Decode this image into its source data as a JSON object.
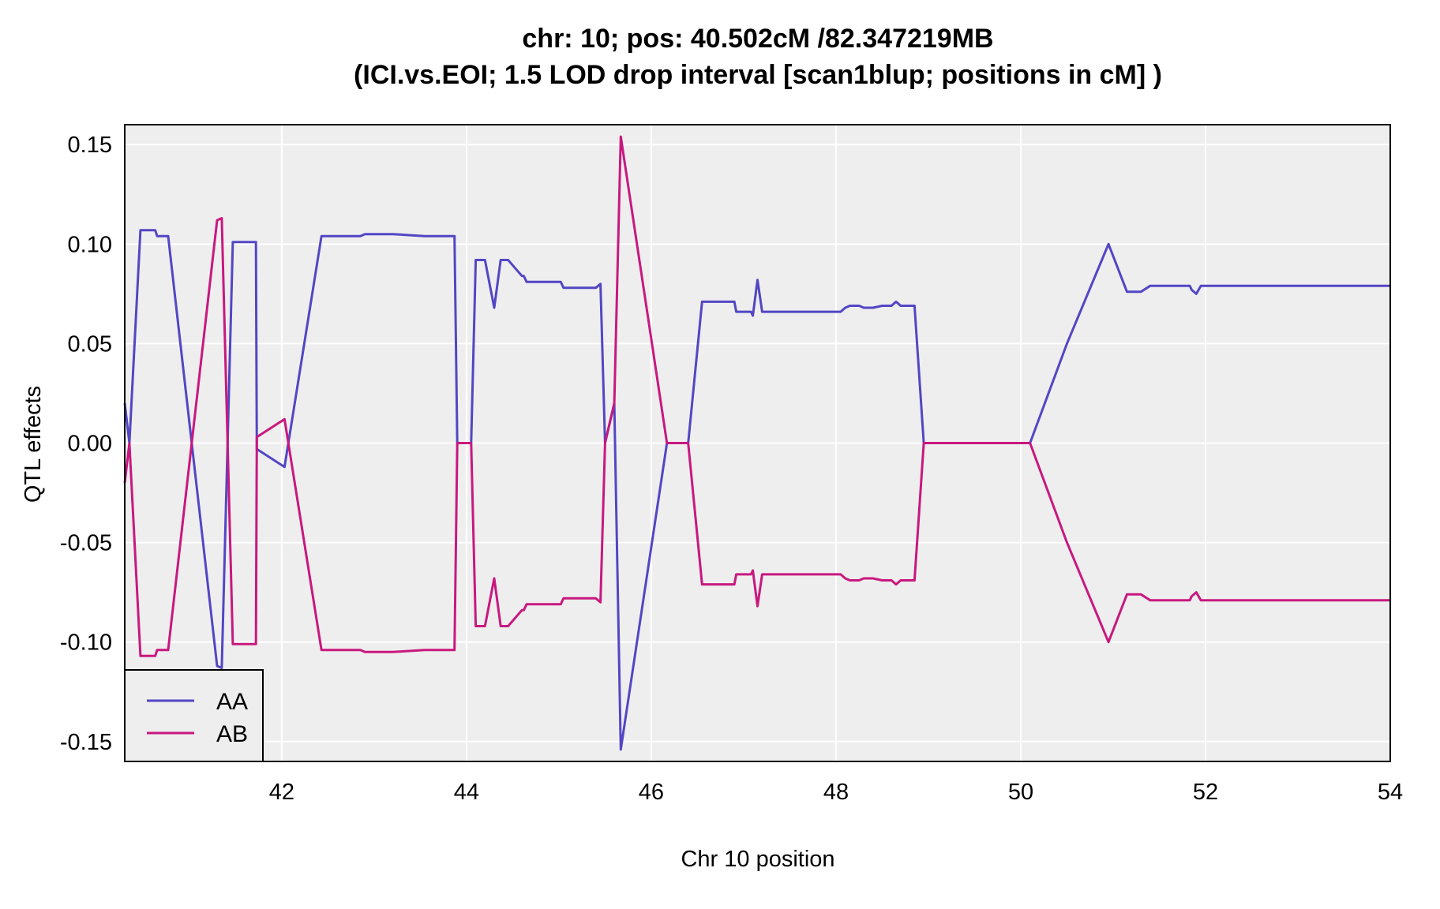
{
  "chart_data": {
    "type": "line",
    "title": "chr: 10; pos: 40.502cM /82.347219MB",
    "subtitle": "(ICI.vs.EOI; 1.5 LOD drop interval [scan1blup; positions in cM] )",
    "xlabel": "Chr 10 position",
    "ylabel": "QTL effects",
    "xlim": [
      40.3,
      54.0
    ],
    "ylim": [
      -0.16,
      0.16
    ],
    "xticks": [
      42,
      44,
      46,
      48,
      50,
      52,
      54
    ],
    "xtick_labels": [
      "42",
      "44",
      "46",
      "48",
      "50",
      "52",
      "54"
    ],
    "yticks": [
      -0.15,
      -0.1,
      -0.05,
      0.0,
      0.05,
      0.1,
      0.15
    ],
    "ytick_labels": [
      "-0.15",
      "-0.10",
      "-0.05",
      "0.00",
      "0.05",
      "0.10",
      "0.15"
    ],
    "grid": true,
    "background": "#eeeeee",
    "legend_position": "bottom-left",
    "series": [
      {
        "name": "AA",
        "color": "#5346c4",
        "x": [
          40.3,
          40.35,
          40.47,
          40.63,
          40.65,
          40.77,
          41.3,
          41.35,
          41.47,
          41.72,
          41.73,
          42.03,
          42.43,
          42.55,
          42.6,
          42.7,
          42.85,
          42.9,
          42.95,
          43.2,
          43.55,
          43.62,
          43.7,
          43.87,
          43.9,
          44.05,
          44.1,
          44.12,
          44.2,
          44.3,
          44.37,
          44.45,
          44.6,
          44.62,
          44.65,
          44.8,
          44.95,
          45.02,
          45.05,
          45.1,
          45.2,
          45.4,
          45.45,
          45.5,
          45.6,
          45.67,
          46.17,
          46.4,
          46.55,
          46.75,
          46.9,
          46.92,
          47.08,
          47.1,
          47.15,
          47.2,
          47.3,
          47.4,
          47.5,
          47.6,
          47.7,
          47.8,
          47.9,
          48.0,
          48.05,
          48.1,
          48.15,
          48.25,
          48.3,
          48.35,
          48.4,
          48.5,
          48.55,
          48.6,
          48.65,
          48.7,
          48.75,
          48.8,
          48.85,
          48.95,
          49.2,
          49.5,
          49.8,
          50.1,
          50.5,
          50.95,
          51.15,
          51.22,
          51.3,
          51.4,
          51.5,
          51.6,
          51.75,
          51.83,
          51.85,
          51.9,
          51.95,
          52.1,
          52.5,
          52.9,
          53.2,
          53.5,
          53.98,
          54.0
        ],
        "y": [
          0.02,
          0.0,
          0.107,
          0.107,
          0.104,
          0.104,
          -0.112,
          -0.113,
          0.101,
          0.101,
          -0.003,
          -0.012,
          0.104,
          0.104,
          0.104,
          0.104,
          0.104,
          0.105,
          0.105,
          0.105,
          0.104,
          0.104,
          0.104,
          0.104,
          0.0,
          0.0,
          0.092,
          0.092,
          0.092,
          0.068,
          0.092,
          0.092,
          0.084,
          0.084,
          0.081,
          0.081,
          0.081,
          0.081,
          0.078,
          0.078,
          0.078,
          0.078,
          0.08,
          0.0,
          0.02,
          -0.154,
          0.0,
          0.0,
          0.071,
          0.071,
          0.071,
          0.066,
          0.066,
          0.064,
          0.082,
          0.066,
          0.066,
          0.066,
          0.066,
          0.066,
          0.066,
          0.066,
          0.066,
          0.066,
          0.066,
          0.068,
          0.069,
          0.069,
          0.068,
          0.068,
          0.068,
          0.069,
          0.069,
          0.069,
          0.071,
          0.069,
          0.069,
          0.069,
          0.069,
          0.0,
          0.0,
          0.0,
          0.0,
          0.0,
          0.05,
          0.1,
          0.076,
          0.076,
          0.076,
          0.079,
          0.079,
          0.079,
          0.079,
          0.079,
          0.077,
          0.075,
          0.079,
          0.079,
          0.079,
          0.079,
          0.079,
          0.079,
          0.079,
          0.079
        ]
      },
      {
        "name": "AB",
        "color": "#c8187f",
        "x": [
          40.3,
          40.35,
          40.47,
          40.63,
          40.65,
          40.77,
          41.3,
          41.35,
          41.47,
          41.72,
          41.73,
          42.03,
          42.43,
          42.55,
          42.6,
          42.7,
          42.85,
          42.9,
          42.95,
          43.2,
          43.55,
          43.62,
          43.7,
          43.87,
          43.9,
          44.05,
          44.1,
          44.12,
          44.2,
          44.3,
          44.37,
          44.45,
          44.6,
          44.62,
          44.65,
          44.8,
          44.95,
          45.02,
          45.05,
          45.1,
          45.2,
          45.4,
          45.45,
          45.5,
          45.6,
          45.67,
          46.17,
          46.4,
          46.55,
          46.75,
          46.9,
          46.92,
          47.08,
          47.1,
          47.15,
          47.2,
          47.3,
          47.4,
          47.5,
          47.6,
          47.7,
          47.8,
          47.9,
          48.0,
          48.05,
          48.1,
          48.15,
          48.25,
          48.3,
          48.35,
          48.4,
          48.5,
          48.55,
          48.6,
          48.65,
          48.7,
          48.75,
          48.8,
          48.85,
          48.95,
          49.2,
          49.5,
          49.8,
          50.1,
          50.5,
          50.95,
          51.15,
          51.22,
          51.3,
          51.4,
          51.5,
          51.6,
          51.75,
          51.83,
          51.85,
          51.9,
          51.95,
          52.1,
          52.5,
          52.9,
          53.2,
          53.5,
          53.98,
          54.0
        ],
        "y": [
          -0.02,
          0.0,
          -0.107,
          -0.107,
          -0.104,
          -0.104,
          0.112,
          0.113,
          -0.101,
          -0.101,
          0.003,
          0.012,
          -0.104,
          -0.104,
          -0.104,
          -0.104,
          -0.104,
          -0.105,
          -0.105,
          -0.105,
          -0.104,
          -0.104,
          -0.104,
          -0.104,
          0.0,
          0.0,
          -0.092,
          -0.092,
          -0.092,
          -0.068,
          -0.092,
          -0.092,
          -0.084,
          -0.084,
          -0.081,
          -0.081,
          -0.081,
          -0.081,
          -0.078,
          -0.078,
          -0.078,
          -0.078,
          -0.08,
          0.0,
          0.02,
          0.154,
          0.0,
          0.0,
          -0.071,
          -0.071,
          -0.071,
          -0.066,
          -0.066,
          -0.064,
          -0.082,
          -0.066,
          -0.066,
          -0.066,
          -0.066,
          -0.066,
          -0.066,
          -0.066,
          -0.066,
          -0.066,
          -0.066,
          -0.068,
          -0.069,
          -0.069,
          -0.068,
          -0.068,
          -0.068,
          -0.069,
          -0.069,
          -0.069,
          -0.071,
          -0.069,
          -0.069,
          -0.069,
          -0.069,
          0.0,
          0.0,
          0.0,
          0.0,
          0.0,
          -0.05,
          -0.1,
          -0.076,
          -0.076,
          -0.076,
          -0.079,
          -0.079,
          -0.079,
          -0.079,
          -0.079,
          -0.077,
          -0.075,
          -0.079,
          -0.079,
          -0.079,
          -0.079,
          -0.079,
          -0.079,
          -0.079,
          -0.079
        ]
      }
    ]
  }
}
